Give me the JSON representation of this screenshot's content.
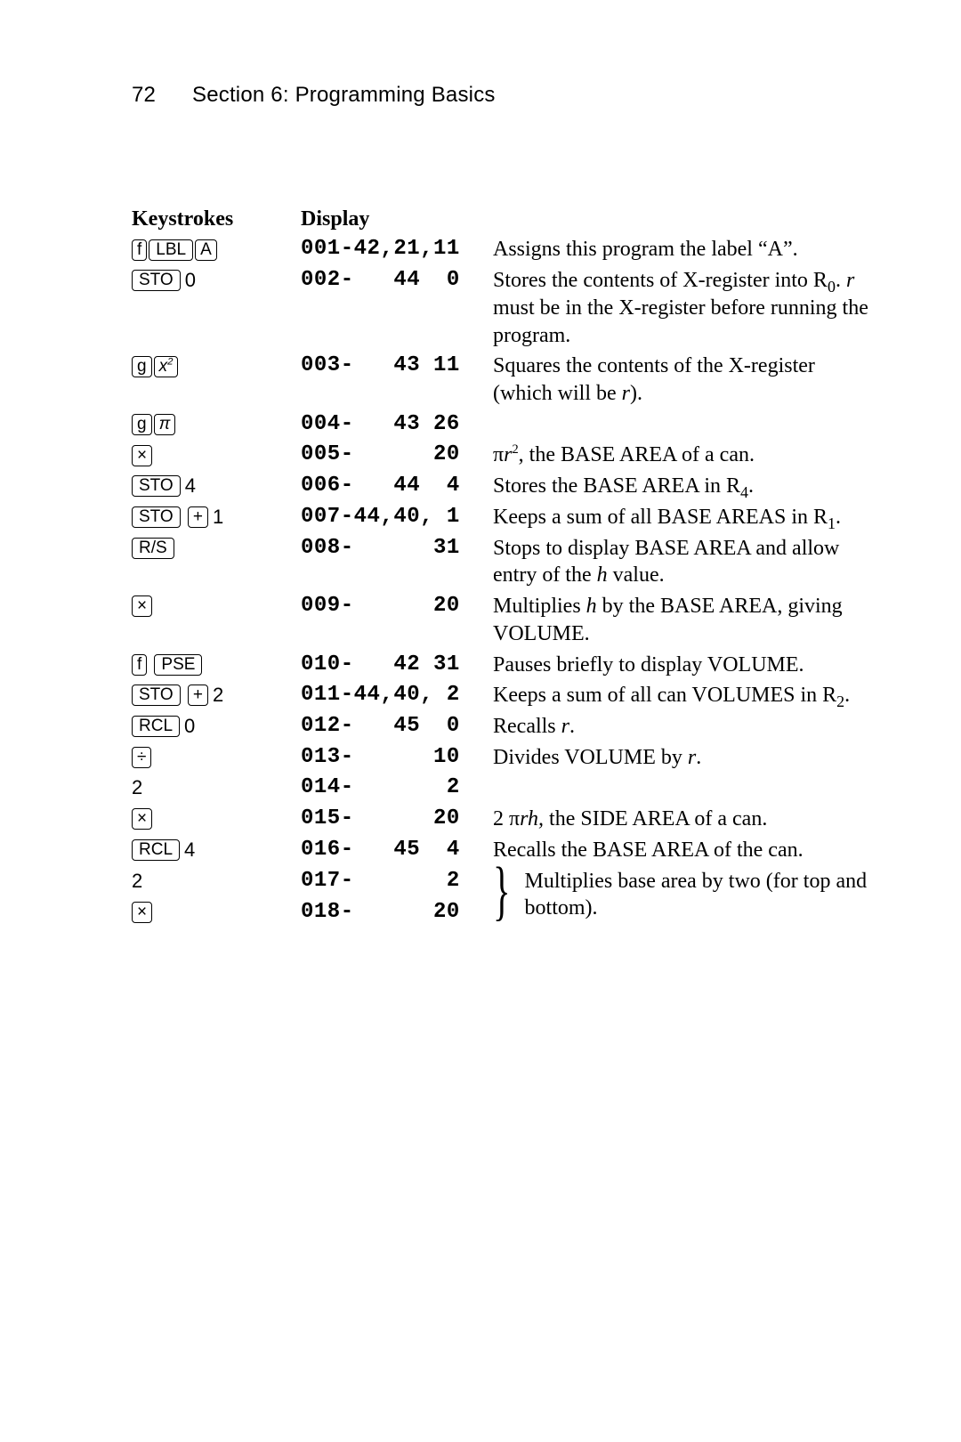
{
  "page_number": "72",
  "section_title": "Section 6: Programming Basics",
  "header": {
    "keystrokes": "Keystrokes",
    "display": "Display"
  },
  "rows": [
    {
      "display": "001-42,21,11",
      "desc_html": "Assigns this program the label “A”."
    },
    {
      "display": "002-   44  0",
      "desc_html": "Stores the contents of X-register into R<sub>0</sub>. <span class=\"ital\">r</span> must be in the X-register before running the program."
    },
    {
      "display": "003-   43 11",
      "desc_html": "Squares the contents of the X-register (which will be <span class=\"ital\">r</span>)."
    },
    {
      "display": "004-   43 26",
      "desc_html": ""
    },
    {
      "display": "005-      20",
      "desc_html": "&pi;<span class=\"ital\">r</span><sup>2</sup>, the BASE AREA of a can."
    },
    {
      "display": "006-   44  4",
      "desc_html": "Stores the BASE AREA in R<sub>4</sub>."
    },
    {
      "display": "007-44,40, 1",
      "desc_html": "Keeps a sum of all BASE AREAS in R<sub>1</sub>."
    },
    {
      "display": "008-      31",
      "desc_html": "Stops to display BASE AREA and allow entry of the <span class=\"ital\">h</span> value."
    },
    {
      "display": "009-      20",
      "desc_html": "Multiplies <span class=\"ital\">h</span> by the BASE AREA, giving VOLUME."
    },
    {
      "display": "010-   42 31",
      "desc_html": "Pauses briefly to display VOLUME."
    },
    {
      "display": "011-44,40, 2",
      "desc_html": "Keeps a sum of all can VOLUMES in R<sub>2</sub>."
    },
    {
      "display": "012-   45  0",
      "desc_html": "Recalls <span class=\"ital\">r</span>."
    },
    {
      "display": "013-      10",
      "desc_html": "Divides VOLUME by <span class=\"ital\">r</span>."
    },
    {
      "display": "014-       2",
      "desc_html": ""
    },
    {
      "display": "015-      20",
      "desc_html": "2 &pi;<span class=\"ital\">rh,</span> the SIDE AREA of a can."
    },
    {
      "display": "016-   45  4",
      "desc_html": "Recalls the BASE AREA of the can."
    },
    {
      "display": "017-       2",
      "desc_html": "Multiplies base area by two (for top and bottom)."
    },
    {
      "display": "018-      20",
      "desc_html": ""
    }
  ],
  "keys": {
    "f": "f",
    "g": "g",
    "LBL": "LBL",
    "A": "A",
    "STO": "STO",
    "RCL": "RCL",
    "x2": "x",
    "pi": "π",
    "times": "×",
    "plus": "+",
    "divide": "÷",
    "RS": "R/S",
    "PSE": "PSE",
    "d0": "0",
    "d1": "1",
    "d2": "2",
    "d4": "4"
  }
}
